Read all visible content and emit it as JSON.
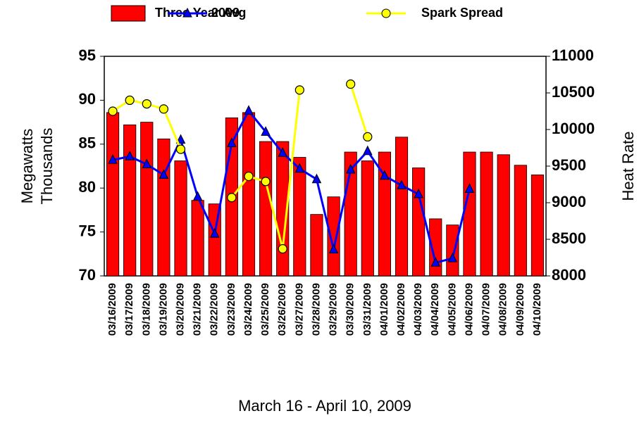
{
  "chart_data": {
    "type": "bar_line",
    "xlabel": "March 16 - April 10, 2009",
    "ylabel": [
      "Megawatts",
      "Thousands"
    ],
    "y2label": "Heat Rate",
    "categories": [
      "03/16/2009",
      "03/17/2009",
      "03/18/2009",
      "03/19/2009",
      "03/20/2009",
      "03/21/2009",
      "03/22/2009",
      "03/23/2009",
      "03/24/2009",
      "03/25/2009",
      "03/26/2009",
      "03/27/2009",
      "03/28/2009",
      "03/29/2009",
      "03/30/2009",
      "03/31/2009",
      "04/01/2009",
      "04/02/2009",
      "04/03/2009",
      "04/04/2009",
      "04/05/2009",
      "04/06/2009",
      "04/07/2009",
      "04/08/2009",
      "04/09/2009",
      "04/10/2009"
    ],
    "series": [
      {
        "name": "Three Year Avg",
        "type": "bar",
        "color": "#ff0000",
        "values": [
          88.6,
          87.2,
          87.5,
          85.6,
          83.1,
          78.6,
          78.2,
          88.0,
          88.6,
          85.3,
          85.3,
          83.5,
          77.0,
          79.0,
          84.1,
          83.1,
          84.1,
          85.8,
          82.3,
          76.5,
          75.8,
          84.1,
          84.1,
          83.8,
          82.6,
          81.5
        ]
      },
      {
        "name": "2009",
        "type": "line",
        "marker": "triangle",
        "color": "#0000ff",
        "values": [
          83.2,
          83.6,
          82.7,
          81.5,
          85.5,
          79.0,
          74.8,
          85.1,
          88.8,
          86.4,
          84.0,
          82.2,
          81.0,
          73.0,
          82.1,
          84.2,
          81.4,
          80.3,
          79.3,
          71.5,
          72.0,
          79.9,
          null,
          null,
          null,
          null
        ]
      },
      {
        "name": "Spark Spread",
        "type": "line",
        "marker": "circle",
        "axis": "y2",
        "color": "#ffff00",
        "values": [
          10250,
          10400,
          10350,
          10280,
          9730,
          null,
          null,
          9070,
          9360,
          9290,
          8370,
          10540,
          null,
          null,
          10620,
          9900,
          null,
          null,
          null,
          null,
          null,
          null,
          null,
          null,
          null,
          null
        ]
      }
    ],
    "ylim": [
      70,
      95
    ],
    "yticks": [
      70,
      75,
      80,
      85,
      90,
      95
    ],
    "y2lim": [
      8000,
      11000
    ],
    "y2ticks": [
      8000,
      8500,
      9000,
      9500,
      10000,
      10500,
      11000
    ]
  }
}
